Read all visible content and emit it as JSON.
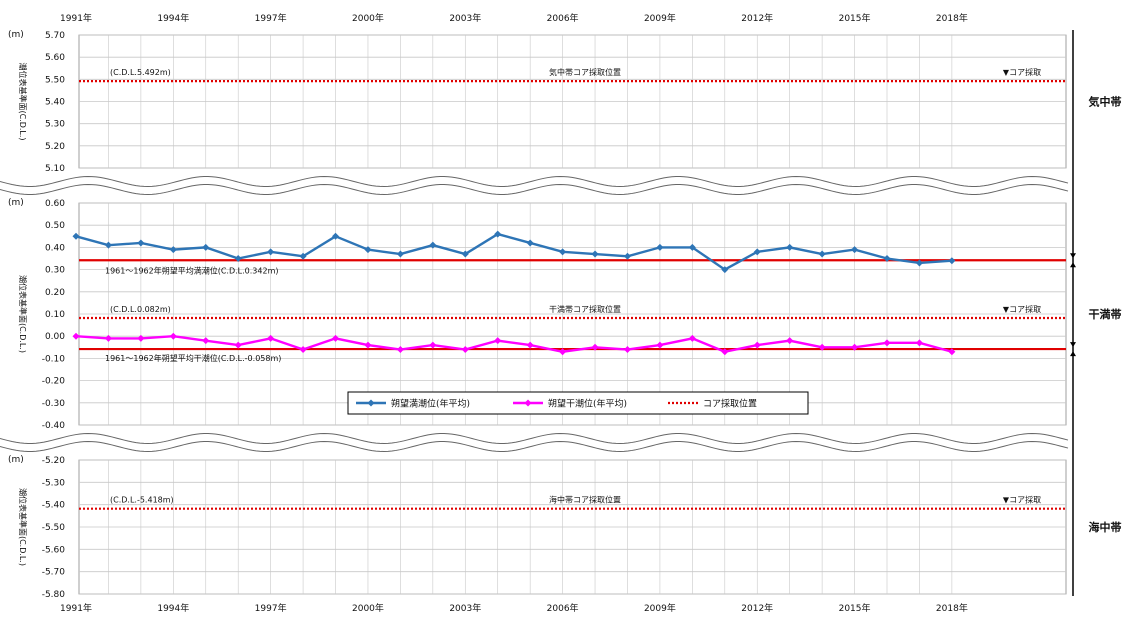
{
  "chart_data": {
    "type": "line",
    "x_tick_labels": [
      "1991年",
      "1994年",
      "1997年",
      "2000年",
      "2003年",
      "2006年",
      "2009年",
      "2012年",
      "2015年",
      "2018年"
    ],
    "x": [
      1991,
      1992,
      1993,
      1994,
      1995,
      1996,
      1997,
      1998,
      1999,
      2000,
      2001,
      2002,
      2003,
      2004,
      2005,
      2006,
      2007,
      2008,
      2009,
      2010,
      2011,
      2012,
      2013,
      2014,
      2015,
      2016,
      2017,
      2018
    ],
    "panels": [
      {
        "id": "kichu",
        "unit": "(m)",
        "ylabel": "潮位表基準面(C.D.L.)",
        "zone_label": "気中帯",
        "ylim": [
          5.1,
          5.7
        ],
        "yticks": [
          "5.70",
          "5.60",
          "5.50",
          "5.40",
          "5.30",
          "5.20",
          "5.10"
        ],
        "core_level": 5.492,
        "core_value_text": "(C.D.L.5.492m)",
        "core_position_text": "気中帯コア採取位置",
        "core_marker_text": "▼コア採取"
      },
      {
        "id": "hikan",
        "unit": "(m)",
        "ylabel": "潮位表基準面(C.D.L.)",
        "zone_label": "干満帯",
        "ylim": [
          -0.4,
          0.6
        ],
        "yticks": [
          "0.60",
          "0.50",
          "0.40",
          "0.30",
          "0.20",
          "0.10",
          "0.00",
          "-0.10",
          "-0.20",
          "-0.30",
          "-0.40"
        ],
        "core_level": 0.082,
        "core_value_text": "(C.D.L.0.082m)",
        "core_position_text": "干満帯コア採取位置",
        "core_marker_text": "▼コア採取",
        "mean_high_level": 0.342,
        "mean_high_text": "1961～1962年朔望平均満潮位(C.D.L.0.342m)",
        "mean_low_level": -0.058,
        "mean_low_text": "1961～1962年朔望平均干潮位(C.D.L.-0.058m)",
        "series": [
          {
            "name": "朔望満潮位(年平均)",
            "color": "#2e75b6",
            "values": [
              0.45,
              0.41,
              0.42,
              0.39,
              0.4,
              0.35,
              0.38,
              0.36,
              0.45,
              0.39,
              0.37,
              0.41,
              0.37,
              0.46,
              0.42,
              0.38,
              0.37,
              0.36,
              0.4,
              0.4,
              0.3,
              0.38,
              0.4,
              0.37,
              0.39,
              0.35,
              0.33,
              0.34
            ]
          },
          {
            "name": "朔望干潮位(年平均)",
            "color": "#ff00ff",
            "values": [
              0.0,
              -0.01,
              -0.01,
              0.0,
              -0.02,
              -0.04,
              -0.01,
              -0.06,
              -0.01,
              -0.04,
              -0.06,
              -0.04,
              -0.06,
              -0.02,
              -0.04,
              -0.07,
              -0.05,
              -0.06,
              -0.04,
              -0.01,
              -0.07,
              -0.04,
              -0.02,
              -0.05,
              -0.05,
              -0.03,
              -0.03,
              -0.07
            ]
          }
        ]
      },
      {
        "id": "kaichu",
        "unit": "(m)",
        "ylabel": "潮位表基準面(C.D.L.)",
        "zone_label": "海中帯",
        "ylim": [
          -5.8,
          -5.2
        ],
        "yticks": [
          "-5.20",
          "-5.30",
          "-5.40",
          "-5.50",
          "-5.60",
          "-5.70",
          "-5.80"
        ],
        "core_level": -5.418,
        "core_value_text": "(C.D.L.-5.418m)",
        "core_position_text": "海中帯コア採取位置",
        "core_marker_text": "▼コア採取"
      }
    ],
    "legend": {
      "placement": "center",
      "items": [
        "朔望満潮位(年平均)",
        "朔望干潮位(年平均)",
        "コア採取位置"
      ]
    },
    "colors": {
      "high": "#2e75b6",
      "low": "#ff00ff",
      "core": "#e00000",
      "mean": "#e00000",
      "grid": "#c8c8c8"
    },
    "grid": true
  }
}
